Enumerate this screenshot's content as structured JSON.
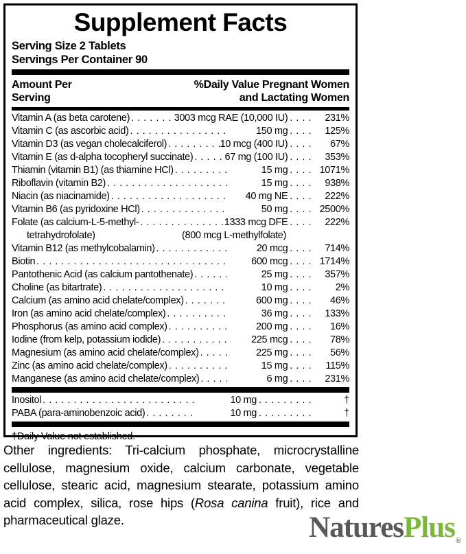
{
  "panel": {
    "title": "Supplement Facts",
    "serving_size": "Serving Size 2 Tablets",
    "servings_per_container": "Servings Per Container 90",
    "header": {
      "left_line1": "Amount Per",
      "left_line2": "Serving",
      "right_line1": "%Daily Value Pregnant Women",
      "right_line2": "and Lactating Women"
    },
    "dot_leader_fill": ". . . . . . . . . . . . . . . . . . . . . . . . . . . . . . . . . . . . . . . . . . . . . . . . . . . . . . . . . . . .",
    "dots_before_percent": ". . . .",
    "dots_before_dagger": ". . . . . . . . .",
    "rows": [
      {
        "name": "Vitamin A (as beta carotene)",
        "amount": "3003 mcg RAE (10,000 IU)",
        "percent": "231%"
      },
      {
        "name": "Vitamin C (as ascorbic acid)",
        "amount": "150 mg",
        "percent": "125%"
      },
      {
        "name": "Vitamin D3 (as vegan cholecalciferol)",
        "amount": "10 mcg (400 IU)",
        "percent": "67%"
      },
      {
        "name": "Vitamin E (as d-alpha tocopheryl succinate)",
        "amount": "67 mg (100 IU)",
        "percent": "353%"
      },
      {
        "name": "Thiamin (vitamin B1) (as thiamine HCl)",
        "amount": "15 mg",
        "percent": "1071%"
      },
      {
        "name": "Riboflavin (vitamin B2)",
        "amount": "15 mg",
        "percent": "938%"
      },
      {
        "name": "Niacin (as niacinamide)",
        "amount": "40 mg NE",
        "percent": "222%"
      },
      {
        "name": "Vitamin B6 (as pyridoxine HCl)",
        "amount": "50 mg",
        "percent": "2500%"
      },
      {
        "name": "Folate (as calcium-L-5-methyl-",
        "amount": "1333 mcg DFE",
        "percent": "222%",
        "name2": "tetrahydrofolate)",
        "amount2": "(800 mcg L-methylfolate)"
      },
      {
        "name": "Vitamin B12 (as methylcobalamin)",
        "amount": "20 mcg",
        "percent": "714%"
      },
      {
        "name": "Biotin",
        "amount": "600 mcg",
        "percent": "1714%"
      },
      {
        "name": "Pantothenic Acid (as calcium pantothenate)",
        "amount": "25 mg",
        "percent": "357%"
      },
      {
        "name": "Choline (as bitartrate)",
        "amount": "10 mg",
        "percent": "2%"
      },
      {
        "name": "Calcium (as amino acid chelate/complex)",
        "amount": "600 mg",
        "percent": "46%"
      },
      {
        "name": "Iron (as amino acid chelate/complex)",
        "amount": "36 mg",
        "percent": "133%"
      },
      {
        "name": "Phosphorus (as amino acid complex)",
        "amount": "200 mg",
        "percent": "16%"
      },
      {
        "name": "Iodine (from kelp, potassium iodide)",
        "amount": "225 mcg",
        "percent": "78%"
      },
      {
        "name": "Magnesium (as amino acid chelate/complex)",
        "amount": "225 mg",
        "percent": "56%"
      },
      {
        "name": "Zinc (as amino acid chelate/complex)",
        "amount": "15 mg",
        "percent": "115%"
      },
      {
        "name": "Manganese (as amino acid chelate/complex)",
        "amount": "6 mg",
        "percent": "231%"
      }
    ],
    "footnote_rows": [
      {
        "name": "Inositol",
        "amount": "10 mg",
        "percent": "†"
      },
      {
        "name": "PABA (para-aminobenzoic acid)",
        "amount": "10 mg",
        "percent": "†"
      }
    ],
    "footnote": "†Daily Value not established."
  },
  "other_ingredients": {
    "part1": "Other ingredients: Tri-calcium phosphate, microcrystalline cellulose, magnesium oxide, calcium carbonate, vegetable cellulose, stearic acid, magnesium stearate, potassium amino acid complex, silica, rose hips (",
    "italic": "Rosa canina",
    "part2": " fruit), rice and pharmaceutical glaze."
  },
  "logo": {
    "name_part1": "Natures",
    "name_part2": "Plus",
    "registered": "®",
    "gray": "#58595b",
    "green": "#7cb83e"
  }
}
